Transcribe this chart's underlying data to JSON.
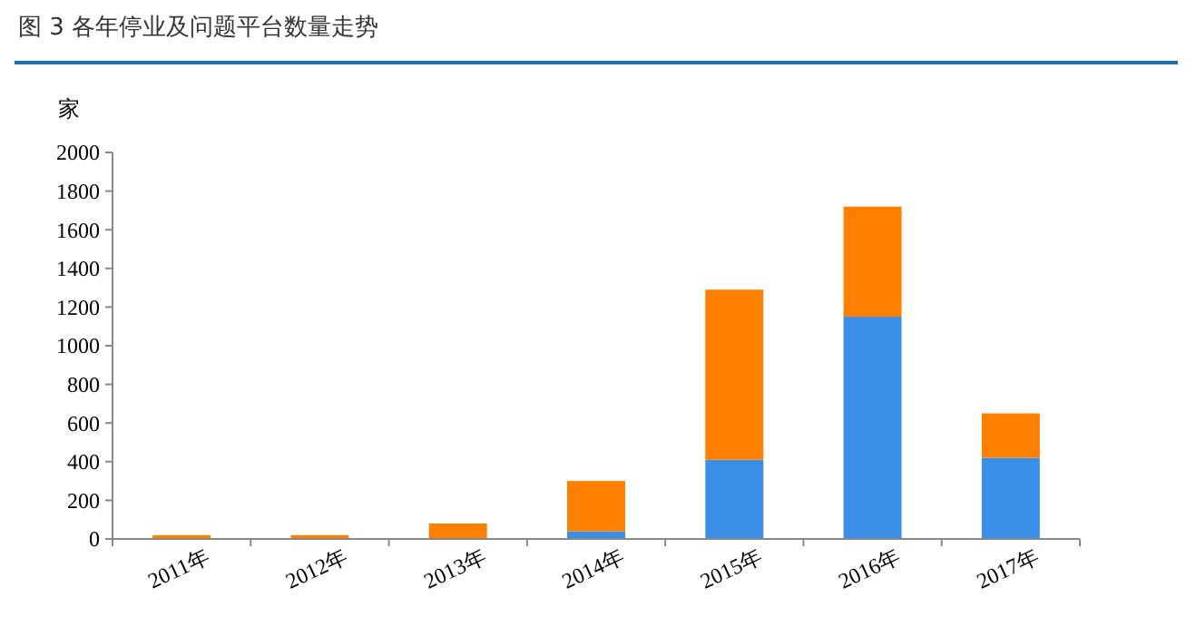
{
  "chart_data": {
    "type": "bar",
    "title": "图 3  各年停业及问题平台数量走势",
    "ylabel": "家",
    "categories": [
      "2011年",
      "2012年",
      "2013年",
      "2014年",
      "2015年",
      "2016年",
      "2017年"
    ],
    "stacked": true,
    "series": [
      {
        "color": "#3a8ee6",
        "values": [
          null,
          null,
          0,
          40,
          410,
          1150,
          420
        ]
      },
      {
        "color": "#ff8000",
        "values": [
          20,
          20,
          80,
          260,
          880,
          570,
          230
        ]
      }
    ],
    "ylim": [
      0,
      2000
    ],
    "yticks": [
      0,
      200,
      400,
      600,
      800,
      1000,
      1200,
      1400,
      1600,
      1800,
      2000
    ],
    "grid": false
  }
}
